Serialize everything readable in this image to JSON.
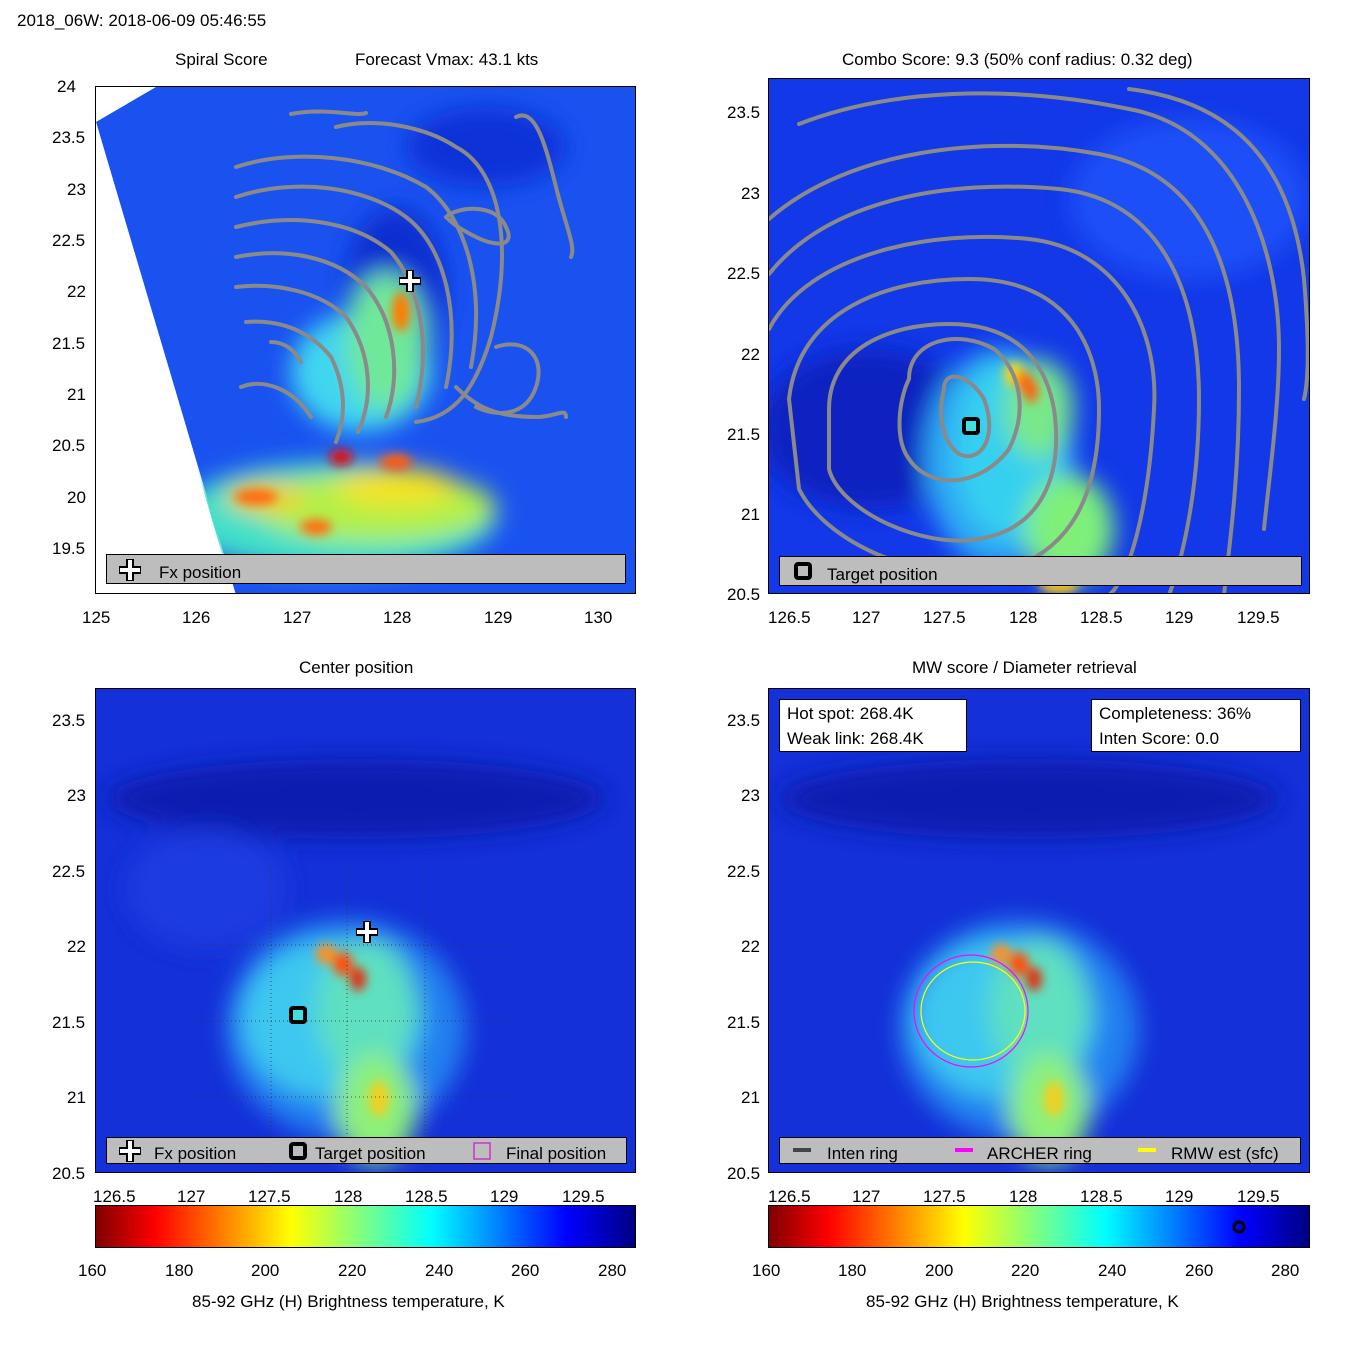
{
  "header": {
    "title": "2018_06W: 2018-06-09 05:46:55"
  },
  "colors": {
    "contour": "#8a8a8a",
    "legend_bg": "#bdbdbd",
    "archer_ring": "#ff00ff",
    "rmw_ring": "#ffff00",
    "inten_ring": "#444444",
    "final_marker": "#cc33cc"
  },
  "chart_data": [
    {
      "type": "heatmap",
      "title": "Spiral Score",
      "subtitle": "Forecast Vmax: 43.1 kts",
      "xlim": [
        125,
        130.37
      ],
      "ylim": [
        19.04,
        24.04
      ],
      "xticks": [
        "125",
        "126",
        "127",
        "128",
        "129",
        "130"
      ],
      "yticks": [
        "24",
        "23.5",
        "23",
        "22.5",
        "22",
        "21.5",
        "21",
        "20.5",
        "20",
        "19.5"
      ],
      "marker": {
        "label": "Fx position",
        "lon": 128.1,
        "lat": 22.08
      },
      "legend": [
        "Fx position"
      ],
      "overlay": "contours"
    },
    {
      "type": "heatmap",
      "title": "Combo Score: 9.3  (50% conf radius: 0.32 deg)",
      "xlim": [
        126.3,
        129.8
      ],
      "ylim": [
        20.5,
        23.7
      ],
      "xticks": [
        "126.5",
        "127",
        "127.5",
        "128",
        "128.5",
        "129",
        "129.5"
      ],
      "yticks": [
        "23.5",
        "23",
        "22.5",
        "22",
        "21.5",
        "21",
        "20.5"
      ],
      "marker": {
        "label": "Target position",
        "lon": 127.65,
        "lat": 21.55
      },
      "legend": [
        "Target position"
      ],
      "overlay": "contours"
    },
    {
      "type": "heatmap",
      "title": "Center position",
      "xlim": [
        126.3,
        129.8
      ],
      "ylim": [
        20.5,
        23.7
      ],
      "xticks": [
        "126.5",
        "127",
        "127.5",
        "128",
        "128.5",
        "129",
        "129.5"
      ],
      "yticks": [
        "23.5",
        "23",
        "22.5",
        "22",
        "21.5",
        "21",
        "20.5"
      ],
      "markers": [
        {
          "label": "Fx position",
          "lon": 128.1,
          "lat": 22.09
        },
        {
          "label": "Target position",
          "lon": 127.65,
          "lat": 21.54
        }
      ],
      "legend": [
        "Fx position",
        "Target position",
        "Final position"
      ],
      "colorbar": {
        "ticks": [
          "160",
          "180",
          "200",
          "220",
          "240",
          "260",
          "280"
        ],
        "label": "85-92 GHz (H) Brightness temperature, K",
        "range": [
          160,
          285
        ]
      }
    },
    {
      "type": "heatmap",
      "title": "MW score / Diameter retrieval",
      "xlim": [
        126.3,
        129.8
      ],
      "ylim": [
        20.5,
        23.7
      ],
      "xticks": [
        "126.5",
        "127",
        "127.5",
        "128",
        "128.5",
        "129",
        "129.5"
      ],
      "yticks": [
        "23.5",
        "23",
        "22.5",
        "22",
        "21.5",
        "21",
        "20.5"
      ],
      "info_left": [
        "Hot spot: 268.4K",
        "Weak link: 268.4K"
      ],
      "info_right": [
        "Completeness: 36%",
        "Inten Score: 0.0"
      ],
      "rings": {
        "center_lon": 127.65,
        "center_lat": 21.55,
        "archer_radius_deg": 0.37,
        "rmw_radius_deg": 0.34
      },
      "legend": [
        "Inten ring",
        "ARCHER ring",
        "RMW est (sfc)"
      ],
      "colorbar": {
        "ticks": [
          "160",
          "180",
          "200",
          "220",
          "240",
          "260",
          "280"
        ],
        "label": "85-92 GHz (H) Brightness temperature, K",
        "range": [
          160,
          285
        ],
        "marker_value": 268.4
      }
    }
  ]
}
